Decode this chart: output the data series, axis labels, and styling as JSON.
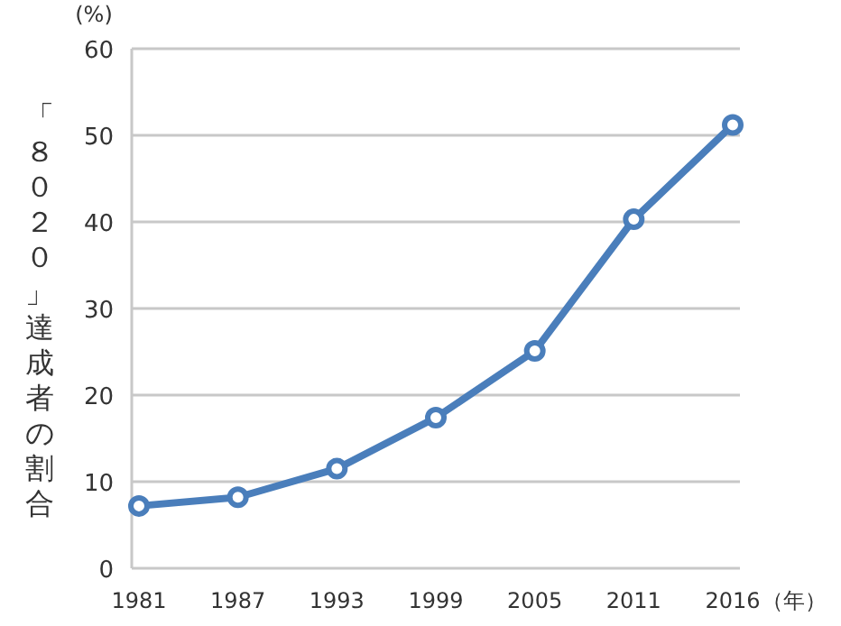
{
  "chart_data": {
    "type": "line",
    "ylabel": "「８０２０」達成者の割合",
    "xlabel": "（年）",
    "annotations": [
      "(%)"
    ],
    "categories": [
      "1981",
      "1987",
      "1993",
      "1999",
      "2005",
      "2011",
      "2016"
    ],
    "series": [
      {
        "color": "#4a7ebb",
        "values": [
          7.2,
          8.2,
          11.5,
          17.4,
          25.1,
          40.3,
          51.2
        ]
      }
    ],
    "ylim": [
      0,
      60
    ],
    "yticks": [
      0,
      10,
      20,
      30,
      40,
      50,
      60
    ],
    "grid": "y",
    "marker": "circle",
    "line_style": "solid"
  }
}
